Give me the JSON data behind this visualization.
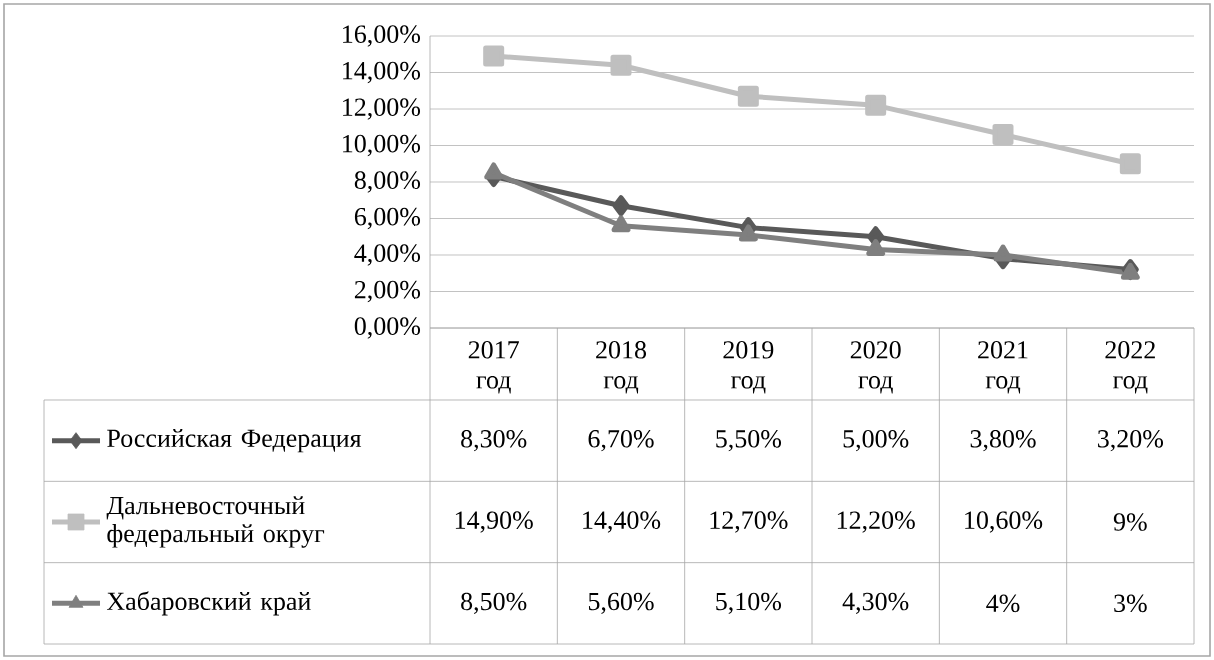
{
  "chart_data": {
    "type": "line",
    "categories": [
      "2017 год",
      "2018 год",
      "2019 год",
      "2020 год",
      "2021 год",
      "2022 год"
    ],
    "series": [
      {
        "name": "Российская Федерация",
        "color": "#595959",
        "marker": "diamond",
        "values": [
          8.3,
          6.7,
          5.5,
          5.0,
          3.8,
          3.2
        ],
        "value_labels": [
          "8,30%",
          "6,70%",
          "5,50%",
          "5,00%",
          "3,80%",
          "3,20%"
        ]
      },
      {
        "name": "Дальневосточный федеральный округ",
        "color": "#bfbfbf",
        "marker": "square",
        "values": [
          14.9,
          14.4,
          12.7,
          12.2,
          10.6,
          9
        ],
        "value_labels": [
          "14,90%",
          "14,40%",
          "12,70%",
          "12,20%",
          "10,60%",
          "9%"
        ]
      },
      {
        "name": "Хабаровский край",
        "color": "#7f7f7f",
        "marker": "triangle",
        "values": [
          8.5,
          5.6,
          5.1,
          4.3,
          4,
          3
        ],
        "value_labels": [
          "8,50%",
          "5,60%",
          "5,10%",
          "4,30%",
          "4%",
          "3%"
        ]
      }
    ],
    "ylim": [
      0,
      16
    ],
    "yticks": [
      {
        "value": 0,
        "label": "0,00%"
      },
      {
        "value": 2,
        "label": "2,00%"
      },
      {
        "value": 4,
        "label": "4,00%"
      },
      {
        "value": 6,
        "label": "6,00%"
      },
      {
        "value": 8,
        "label": "8,00%"
      },
      {
        "value": 10,
        "label": "10,00%"
      },
      {
        "value": 12,
        "label": "12,00%"
      },
      {
        "value": 14,
        "label": "14,00%"
      },
      {
        "value": 16,
        "label": "16,00%"
      }
    ],
    "grid": "y",
    "legend": "bottom",
    "line_style": "solid"
  }
}
